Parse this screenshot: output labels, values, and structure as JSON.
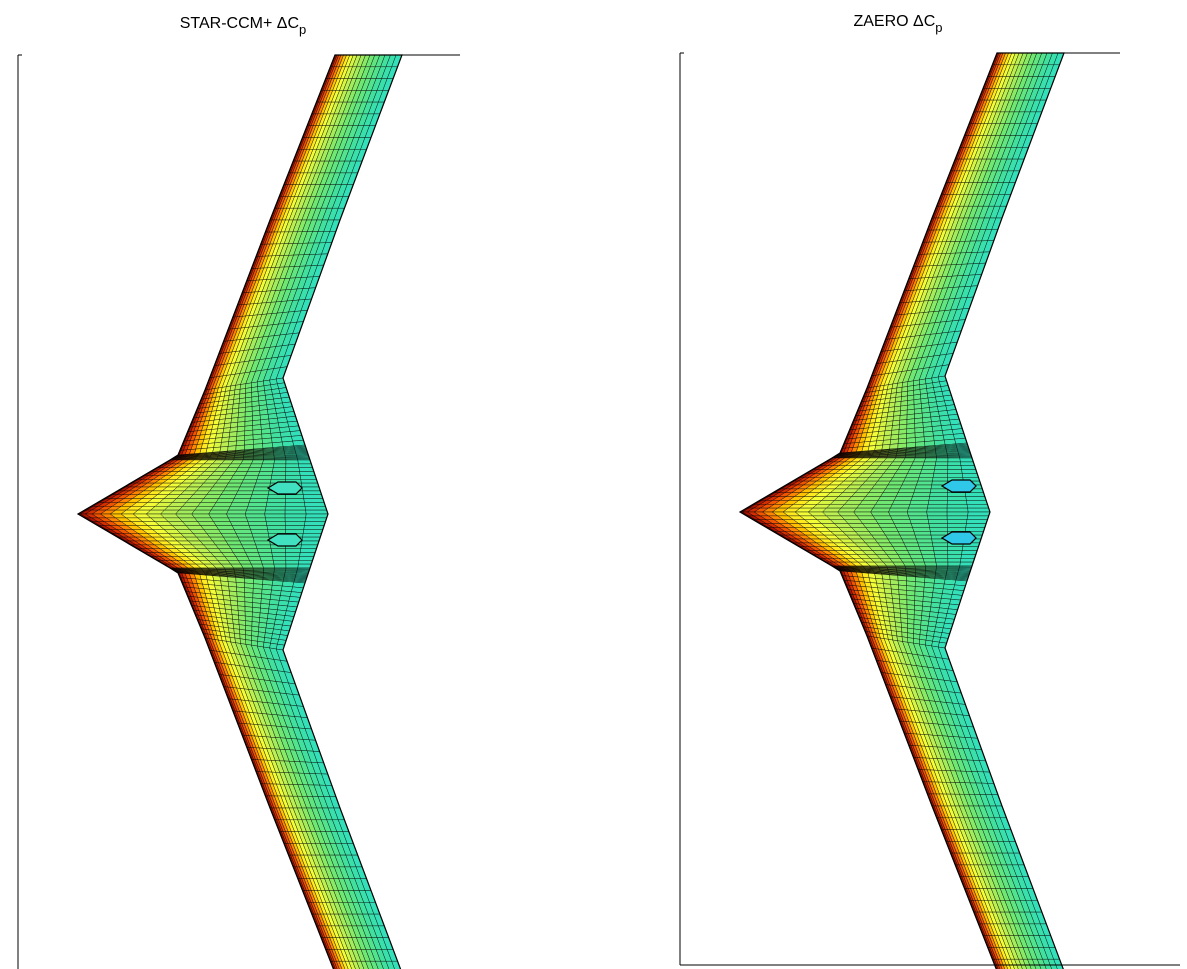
{
  "panels": [
    {
      "title": "STAR-CCM+ ΔC",
      "title_subscript": "p"
    },
    {
      "title": "ZAERO ΔC",
      "title_subscript": "p"
    }
  ]
}
